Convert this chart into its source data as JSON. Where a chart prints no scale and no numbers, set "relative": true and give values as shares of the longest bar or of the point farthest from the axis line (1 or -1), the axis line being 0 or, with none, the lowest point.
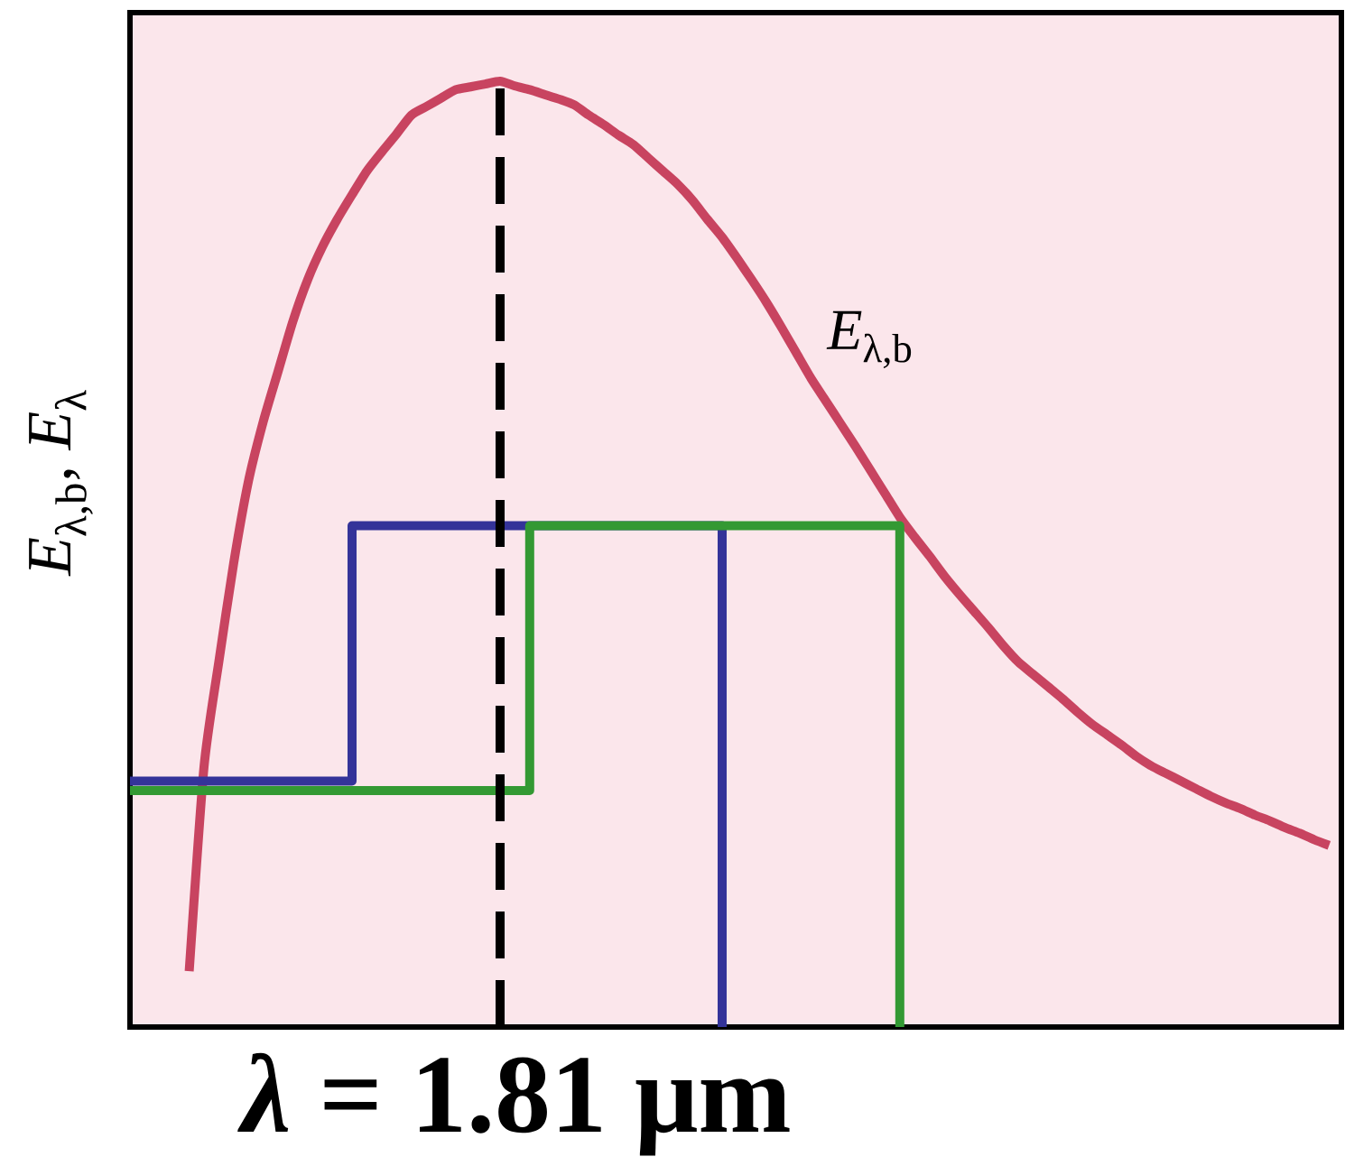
{
  "chart_data": {
    "type": "line",
    "relative": true,
    "ylabel": "*E*$_{λ,b}$, *E*$_{λ}$",
    "categories": [
      null,
      null,
      null,
      null,
      null,
      null,
      null,
      null,
      null,
      null,
      null,
      null,
      null,
      null,
      null,
      null,
      null,
      null,
      null,
      null,
      null,
      null,
      null,
      null,
      null,
      null,
      null,
      null,
      null,
      null,
      null,
      null,
      null,
      null,
      null,
      null,
      null,
      null,
      null,
      null,
      null,
      null,
      null,
      null,
      null,
      null,
      null,
      null,
      null,
      null,
      null,
      null,
      null,
      null,
      null,
      null,
      null,
      null,
      null,
      null,
      null,
      null,
      null,
      null,
      null,
      null,
      null,
      null,
      null,
      null,
      null,
      null,
      null,
      null,
      null,
      null,
      null,
      null,
      null,
      null,
      null,
      null
    ],
    "series": [
      {
        "name": "*E*$_{λ,b}$",
        "color": "#c84460",
        "values": [
          null,
          null,
          null,
          null,
          0.059,
          0.275,
          0.386,
          0.49,
          0.577,
          0.64,
          0.693,
          0.746,
          0.79,
          0.825,
          0.854,
          0.88,
          0.905,
          0.925,
          0.944,
          0.964,
          0.973,
          0.982,
          0.991,
          0.994,
          0.997,
          1,
          0.995,
          0.991,
          0.986,
          0.981,
          0.975,
          0.964,
          0.954,
          0.943,
          0.933,
          0.919,
          0.905,
          0.891,
          0.874,
          0.854,
          0.835,
          0.813,
          0.79,
          0.766,
          0.74,
          0.713,
          0.686,
          0.662,
          0.638,
          0.614,
          0.589,
          0.564,
          0.539,
          0.518,
          0.498,
          0.477,
          0.458,
          0.44,
          0.422,
          0.403,
          0.386,
          0.373,
          0.36,
          0.347,
          0.333,
          0.32,
          0.309,
          0.298,
          0.286,
          0.276,
          0.268,
          0.26,
          0.252,
          0.244,
          0.237,
          0.231,
          0.224,
          0.218,
          0.211,
          0.205,
          0.198,
          0.192
        ]
      },
      {
        "type": "step",
        "color": "#343399",
        "values": [
          0.26,
          0.26,
          0.26,
          0.26,
          0.26,
          0.26,
          0.26,
          0.26,
          0.26,
          0.26,
          0.26,
          0.26,
          0.26,
          0.26,
          0.26,
          0.53,
          0.53,
          0.53,
          0.53,
          0.53,
          0.53,
          0.53,
          0.53,
          0.53,
          0.53,
          0.53,
          0.53,
          0.53,
          0.53,
          0.53,
          0.53,
          0.53,
          0.53,
          0.53,
          0.53,
          0.53,
          0.53,
          0.53,
          0.53,
          0.53,
          0,
          null,
          null,
          null,
          null,
          null,
          null,
          null,
          null,
          null,
          null,
          null,
          null,
          null,
          null,
          null,
          null,
          null,
          null,
          null,
          null,
          null,
          null,
          null,
          null,
          null,
          null,
          null,
          null,
          null,
          null,
          null,
          null,
          null,
          null,
          null,
          null,
          null,
          null,
          null,
          null,
          null
        ]
      },
      {
        "type": "step",
        "color": "#339933",
        "values": [
          0.25,
          0.25,
          0.25,
          0.25,
          0.25,
          0.25,
          0.25,
          0.25,
          0.25,
          0.25,
          0.25,
          0.25,
          0.25,
          0.25,
          0.25,
          0.25,
          0.25,
          0.25,
          0.25,
          0.25,
          0.25,
          0.25,
          0.25,
          0.25,
          0.25,
          0.25,
          0.25,
          0.53,
          0.53,
          0.53,
          0.53,
          0.53,
          0.53,
          0.53,
          0.53,
          0.53,
          0.53,
          0.53,
          0.53,
          0.53,
          0.53,
          0.53,
          0.53,
          0.53,
          0.53,
          0.53,
          0.53,
          0.53,
          0.53,
          0.53,
          0.53,
          0.53,
          0,
          null,
          null,
          null,
          null,
          null,
          null,
          null,
          null,
          null,
          null,
          null,
          null,
          null,
          null,
          null,
          null,
          null,
          null,
          null,
          null,
          null,
          null,
          null,
          null,
          null,
          null,
          null,
          null,
          null
        ]
      }
    ],
    "annotations": [
      "*λ* = 1.81 μm"
    ]
  }
}
